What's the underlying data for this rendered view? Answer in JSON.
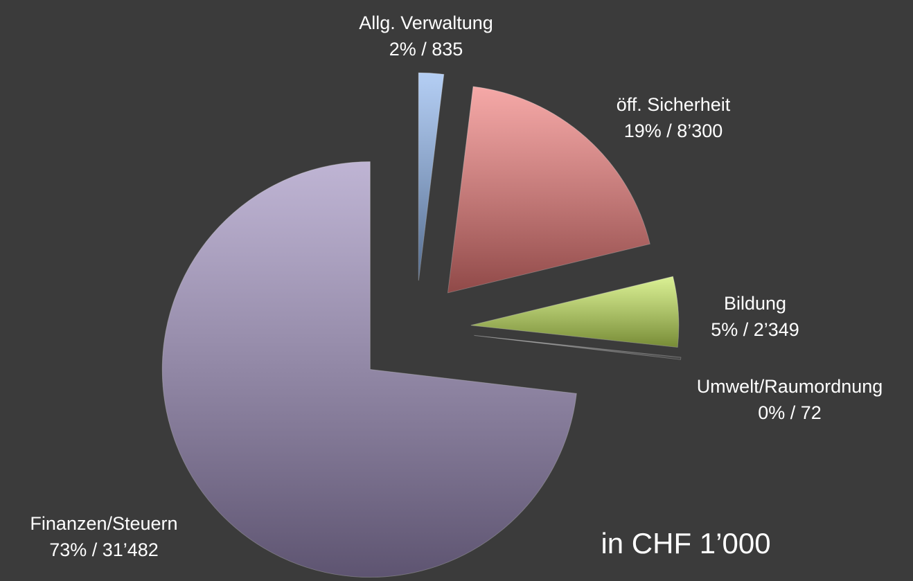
{
  "chart_data": {
    "type": "pie",
    "categories": [
      "Allg. Verwaltung",
      "öff. Sicherheit",
      "Bildung",
      "Umwelt/Raumordnung",
      "Finanzen/Steuern"
    ],
    "values": [
      835,
      8300,
      2349,
      72,
      31482
    ],
    "value_labels": [
      "2% / 835",
      "19% / 8’300",
      "5% / 2’349",
      "0% / 72",
      "73% / 31’482"
    ],
    "colors": [
      "#8cb4ee",
      "#f07a78",
      "#c6e85a",
      "#6a6a6a",
      "#9c8cbc"
    ],
    "annotation": "in CHF 1’000"
  }
}
